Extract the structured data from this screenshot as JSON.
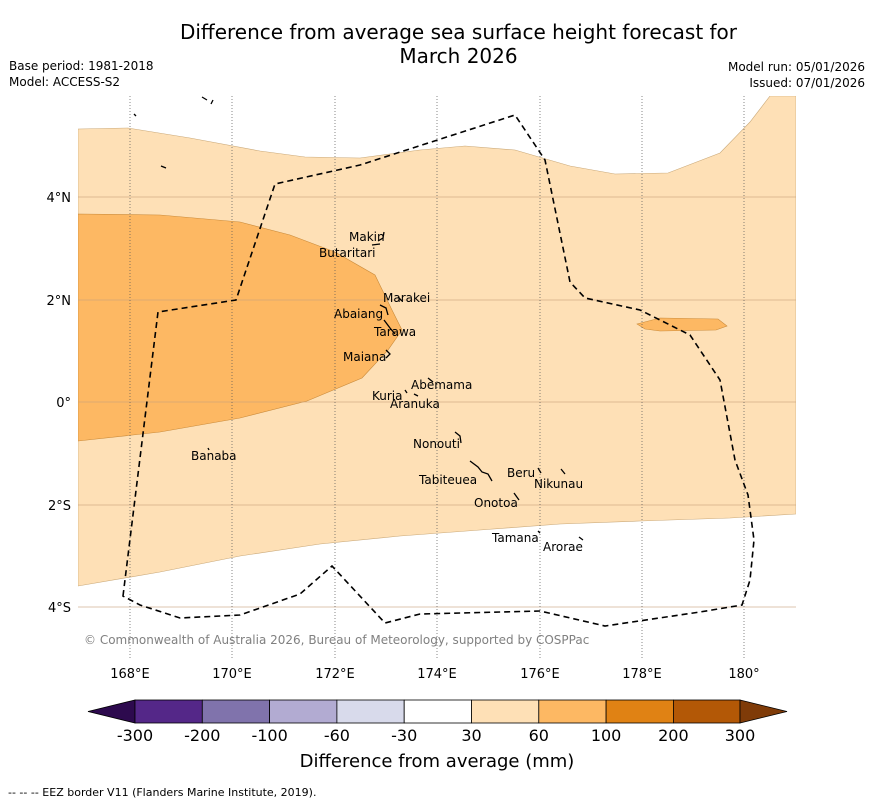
{
  "title_line1": "Difference from average sea surface height forecast for",
  "title_line2": "March 2026",
  "base_period": "Base period: 1981-2018",
  "model": "Model: ACCESS-S2",
  "model_run": "Model run: 05/01/2026",
  "issued": "Issued: 07/01/2026",
  "copyright": "© Commonwealth of Australia 2026, Bureau of Meteorology, supported by COSPPac",
  "footer": "--  --  -- EEZ border V11 (Flanders Marine Institute, 2019).",
  "lon_labels": [
    "168°E",
    "170°E",
    "172°E",
    "174°E",
    "176°E",
    "178°E",
    "180°"
  ],
  "lat_labels": [
    "4°N",
    "2°N",
    "0°",
    "2°S",
    "4°S"
  ],
  "places": {
    "makin": "Makin",
    "butaritari": "Butaritari",
    "marakei": "Marakei",
    "abaiang": "Abaiang",
    "tarawa": "Tarawa",
    "maiana": "Maiana",
    "abemama": "Abemama",
    "kuria": "Kuria",
    "aranuka": "Aranuka",
    "nonouti": "Nonouti",
    "banaba": "Banaba",
    "beru": "Beru",
    "tabiteuea": "Tabiteuea",
    "nikunau": "Nikunau",
    "onotoa": "Onotoa",
    "tamana": "Tamana",
    "arorae": "Arorae"
  },
  "colorbar": {
    "title": "Difference from average (mm)",
    "ticks": [
      "-300",
      "-200",
      "-100",
      "-60",
      "-30",
      "30",
      "60",
      "100",
      "200",
      "300"
    ],
    "colors": {
      "under": "#2d0a4e",
      "c1": "#542788",
      "c2": "#8073ac",
      "c3": "#b2abd2",
      "c4": "#d8daeb",
      "c5": "#ffffff",
      "c6": "#fee0b6",
      "c7": "#fdb863",
      "c8": "#e08214",
      "c9": "#b35806",
      "over": "#7f3b08"
    }
  }
}
